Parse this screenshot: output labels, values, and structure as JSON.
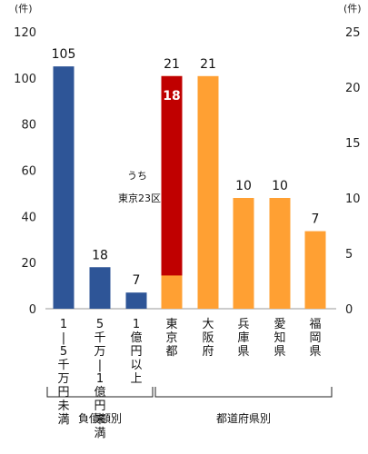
{
  "chart_data": {
    "type": "bar",
    "left_axis": {
      "unit": "(件)",
      "ylim": [
        0,
        120
      ],
      "ticks": [
        "0",
        "20",
        "40",
        "60",
        "80",
        "100",
        "120"
      ]
    },
    "right_axis": {
      "unit": "(件)",
      "ylim": [
        0,
        25
      ],
      "ticks": [
        "0",
        "5",
        "10",
        "15",
        "20",
        "25"
      ]
    },
    "categories": [
      "1〜5千万円未満",
      "5千万〜1億円未満",
      "1億円以上",
      "東京都",
      "大阪府",
      "兵庫県",
      "愛知県",
      "福岡県"
    ],
    "values": [
      105,
      18,
      7,
      21,
      21,
      10,
      10,
      7
    ],
    "axis": [
      "left",
      "left",
      "left",
      "right",
      "right",
      "right",
      "right",
      "right"
    ],
    "colors": [
      "#2E5597",
      "#2E5597",
      "#2E5597",
      "#FFA033",
      "#FFA033",
      "#FFA033",
      "#FFA033",
      "#FFA033"
    ],
    "labels": [
      "105",
      "18",
      "7",
      "21",
      "21",
      "10",
      "10",
      "7"
    ],
    "inset": {
      "category": "東京都",
      "value": 18,
      "label": "18",
      "color": "#C00000"
    },
    "annotation": [
      "うち",
      "東京23区"
    ],
    "groups": [
      {
        "label": "負債額別",
        "from": 0,
        "to": 2
      },
      {
        "label": "都道府県別",
        "from": 3,
        "to": 7
      }
    ]
  }
}
